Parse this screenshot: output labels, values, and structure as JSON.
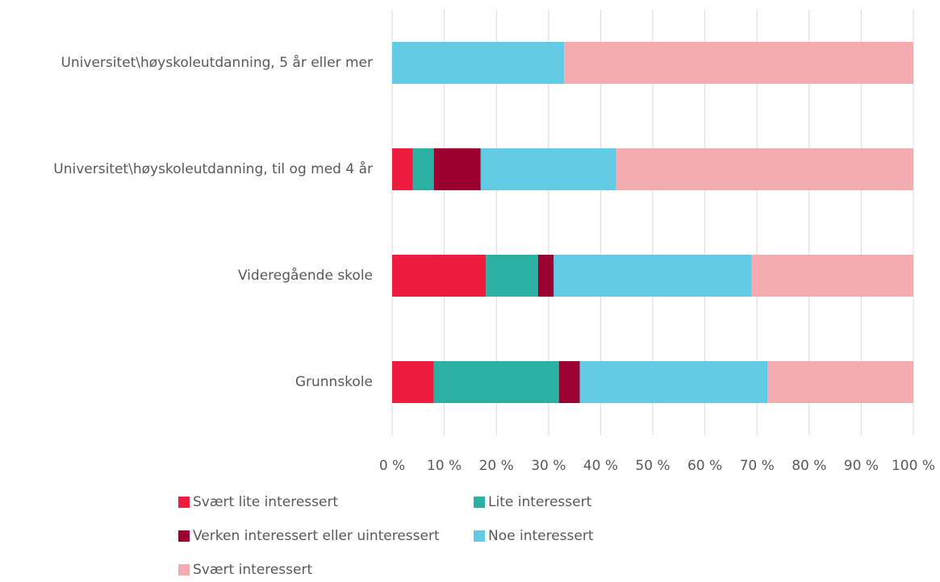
{
  "chart_data": {
    "type": "stacked_barh",
    "categories": [
      "Universitet\\høyskoleutdanning, 5 år eller mer",
      "Universitet\\høyskoleutdanning, til og med 4 år",
      "Videregående skole",
      "Grunnskole"
    ],
    "series": [
      {
        "name": "Svært lite interessert",
        "color": "#ee1c3f",
        "values": [
          0,
          4,
          18,
          8
        ]
      },
      {
        "name": "Lite interessert",
        "color": "#2bb0a1",
        "values": [
          0,
          4,
          10,
          24
        ]
      },
      {
        "name": "Verken interessert eller uinteressert",
        "color": "#9b0030",
        "values": [
          0,
          9,
          3,
          4
        ]
      },
      {
        "name": "Noe interessert",
        "color": "#62cbe3",
        "values": [
          33,
          26,
          38,
          36
        ]
      },
      {
        "name": "Svært interessert",
        "color": "#f4abaf",
        "values": [
          67,
          57,
          31,
          28
        ]
      }
    ],
    "xlim": [
      0,
      100
    ],
    "xticks": [
      {
        "value": 0,
        "label": "0 %"
      },
      {
        "value": 10,
        "label": "10 %"
      },
      {
        "value": 20,
        "label": "20 %"
      },
      {
        "value": 30,
        "label": "30 %"
      },
      {
        "value": 40,
        "label": "40 %"
      },
      {
        "value": 50,
        "label": "50 %"
      },
      {
        "value": 60,
        "label": "60 %"
      },
      {
        "value": 70,
        "label": "70 %"
      },
      {
        "value": 80,
        "label": "80 %"
      },
      {
        "value": 90,
        "label": "90 %"
      },
      {
        "value": 100,
        "label": "100 %"
      }
    ],
    "grid": true,
    "legend": "bottom"
  }
}
